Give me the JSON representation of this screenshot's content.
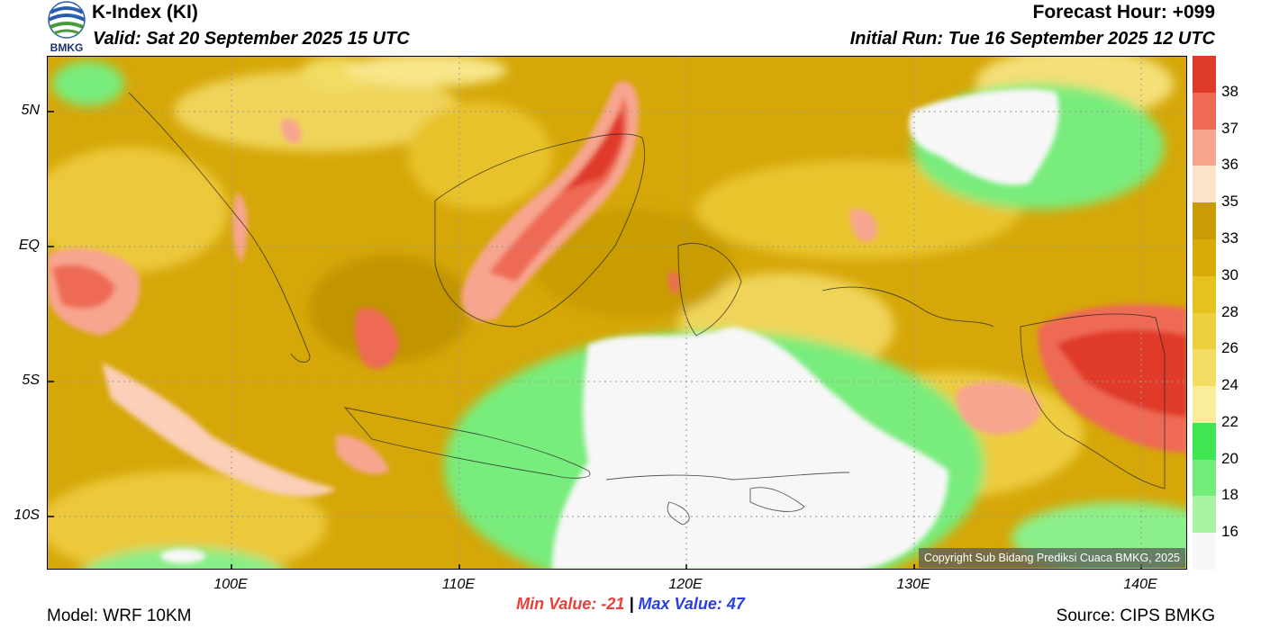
{
  "header": {
    "title": "K-Index (KI)",
    "valid": "Valid: Sat 20 September 2025 15 UTC",
    "forecast_hour": "Forecast Hour: +099",
    "initial_run": "Initial Run: Tue 16 September 2025 12 UTC",
    "logo_text": "BMKG"
  },
  "map": {
    "lat_labels": [
      "5N",
      "EQ",
      "5S",
      "10S"
    ],
    "lon_labels": [
      "100E",
      "110E",
      "120E",
      "130E",
      "140E"
    ],
    "copyright": "Copyright Sub Bidang Prediksi Cuaca BMKG, 2025"
  },
  "colorbar": {
    "labels": [
      "38",
      "37",
      "36",
      "35",
      "33",
      "30",
      "28",
      "26",
      "24",
      "22",
      "20",
      "18",
      "16"
    ],
    "colors": [
      "#e03a2a",
      "#ee6a55",
      "#f7a58f",
      "#fde2cc",
      "#c99c05",
      "#d8ab08",
      "#e6c21e",
      "#edd03c",
      "#f3dc62",
      "#f9ec9a",
      "#3ee652",
      "#72ec7a",
      "#a8f4a2",
      "#f7f7f7"
    ]
  },
  "footer": {
    "min_label": "Min Value: -21",
    "separator": "|",
    "max_label": "Max Value:  47",
    "model": "Model: WRF 10KM",
    "source": "Source: CIPS BMKG"
  }
}
